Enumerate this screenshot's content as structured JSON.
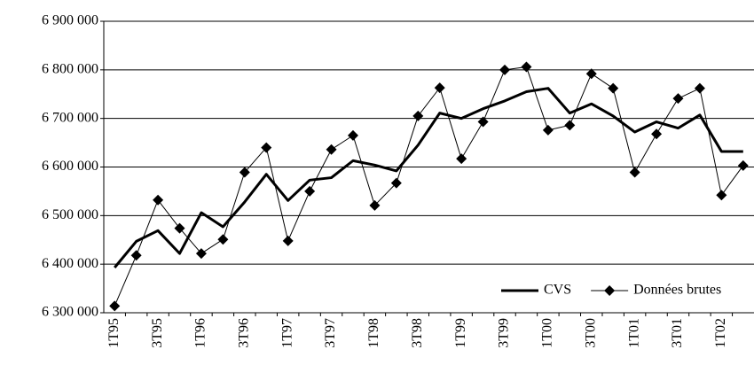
{
  "chart_data": {
    "type": "line",
    "categories": [
      "1T95",
      null,
      "3T95",
      null,
      "1T96",
      null,
      "3T96",
      null,
      "1T97",
      null,
      "3T97",
      null,
      "1T98",
      null,
      "3T98",
      null,
      "1T99",
      null,
      "3T99",
      null,
      "1T00",
      null,
      "3T00",
      null,
      "1T01",
      null,
      "3T01",
      null,
      "1T02",
      null
    ],
    "series": [
      {
        "name": "CVS",
        "color": "#000000",
        "line_width": 3,
        "marker": "none",
        "values": [
          6393000,
          6447000,
          6469000,
          6422000,
          6506000,
          6477000,
          6528000,
          6585000,
          6531000,
          6573000,
          6578000,
          6613000,
          6604000,
          6592000,
          6645000,
          6711000,
          6700000,
          6720000,
          6736000,
          6755000,
          6762000,
          6711000,
          6730000,
          6705000,
          6672000,
          6693000,
          6680000,
          6707000,
          6632000,
          6632000
        ]
      },
      {
        "name": "Données brutes",
        "color": "#000000",
        "line_width": 1,
        "marker": "diamond",
        "values": [
          6314000,
          6418000,
          6532000,
          6474000,
          6422000,
          6451000,
          6589000,
          6640000,
          6448000,
          6550000,
          6636000,
          6665000,
          6521000,
          6567000,
          6705000,
          6763000,
          6617000,
          6693000,
          6800000,
          6806000,
          6676000,
          6686000,
          6792000,
          6762000,
          6589000,
          6668000,
          6741000,
          6762000,
          6542000,
          6603000
        ]
      }
    ],
    "ylim": [
      6300000,
      6900000
    ],
    "yticks": [
      {
        "value": 6300000,
        "label": "6 300 000"
      },
      {
        "value": 6400000,
        "label": "6 400 000"
      },
      {
        "value": 6500000,
        "label": "6 500 000"
      },
      {
        "value": 6600000,
        "label": "6 600 000"
      },
      {
        "value": 6700000,
        "label": "6 700 000"
      },
      {
        "value": 6800000,
        "label": "6 800 000"
      },
      {
        "value": 6900000,
        "label": "6 900 000"
      }
    ],
    "grid": true,
    "legend": "lower right"
  }
}
